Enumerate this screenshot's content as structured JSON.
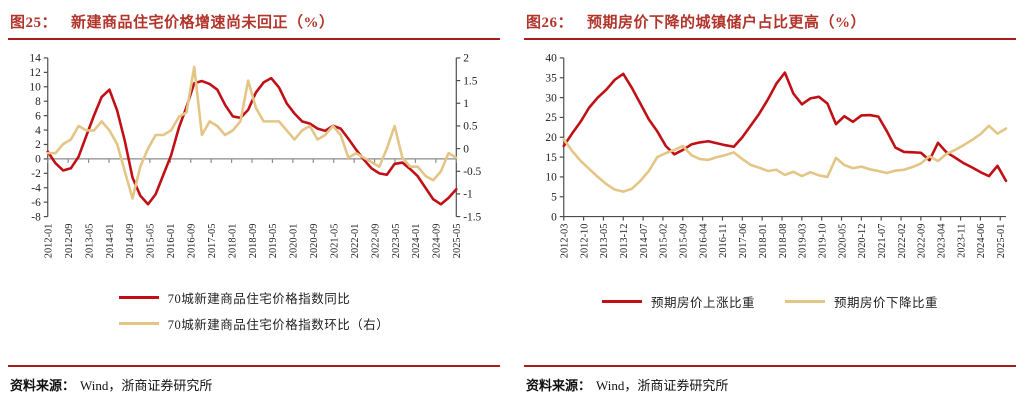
{
  "figures": [
    {
      "fig_label": "图25：",
      "title": "新建商品住宅价格增速尚未回正（%）",
      "source_label": "资料来源：",
      "source_text": "Wind，浙商证券研究所"
    },
    {
      "fig_label": "图26：",
      "title": "预期房价下降的城镇储户占比更高（%）",
      "source_label": "资料来源：",
      "source_text": "Wind，浙商证券研究所"
    }
  ],
  "colors": {
    "series_red": "#C01016",
    "series_tan": "#E3C586",
    "title_red": "#B2352B",
    "rule_red": "#A61E1A",
    "axis_line": "#4D4D4D",
    "zero_line_gray": "#8C8C8C",
    "tick_text": "#1F1F1F"
  },
  "chart_data": [
    {
      "type": "line",
      "title": "新建商品住宅价格增速尚未回正（%）",
      "xlabel": "",
      "ylabel": "",
      "grid": false,
      "legend_position": "bottom",
      "left_axis": {
        "min": -8,
        "max": 14,
        "step": 2
      },
      "right_axis": {
        "min": -1.5,
        "max": 2,
        "step": 0.5
      },
      "axis_color": "#4D4D4D",
      "baseline_color": "#8C8C8C",
      "tick_text_color": "#1F1F1F",
      "x_labels": [
        "2012-01",
        "2012-09",
        "2013-05",
        "2014-01",
        "2014-09",
        "2015-05",
        "2016-01",
        "2016-09",
        "2017-05",
        "2018-01",
        "2018-09",
        "2019-05",
        "2020-01",
        "2020-09",
        "2021-05",
        "2022-01",
        "2022-09",
        "2023-05",
        "2024-01",
        "2024-09",
        "2025-05"
      ],
      "categories": [
        "2012-01",
        "2012-04",
        "2012-07",
        "2012-10",
        "2013-01",
        "2013-04",
        "2013-07",
        "2013-10",
        "2014-01",
        "2014-04",
        "2014-07",
        "2014-10",
        "2015-01",
        "2015-04",
        "2015-07",
        "2015-10",
        "2016-01",
        "2016-04",
        "2016-07",
        "2016-10",
        "2017-01",
        "2017-04",
        "2017-07",
        "2017-10",
        "2018-01",
        "2018-04",
        "2018-07",
        "2018-10",
        "2019-01",
        "2019-04",
        "2019-07",
        "2019-10",
        "2020-01",
        "2020-04",
        "2020-07",
        "2020-10",
        "2021-01",
        "2021-04",
        "2021-07",
        "2021-10",
        "2022-01",
        "2022-04",
        "2022-07",
        "2022-10",
        "2023-01",
        "2023-04",
        "2023-07",
        "2023-10",
        "2024-01",
        "2024-04",
        "2024-07",
        "2024-10",
        "2025-01",
        "2025-04"
      ],
      "series": [
        {
          "name": "70城新建商品住宅价格指数同比",
          "axis": "left",
          "color": "#C01016",
          "values": [
            1.0,
            -0.6,
            -1.6,
            -1.3,
            0.3,
            3.2,
            6.0,
            8.6,
            9.6,
            6.7,
            2.5,
            -2.6,
            -5.1,
            -6.3,
            -4.9,
            -2.2,
            0.5,
            4.3,
            7.2,
            10.5,
            10.8,
            10.4,
            9.6,
            7.5,
            5.9,
            5.7,
            6.8,
            9.2,
            10.6,
            11.2,
            9.9,
            7.7,
            6.3,
            5.2,
            4.9,
            4.2,
            3.9,
            4.6,
            4.2,
            2.8,
            1.3,
            -0.1,
            -1.3,
            -2.0,
            -2.2,
            -0.7,
            -0.5,
            -1.4,
            -2.4,
            -4.0,
            -5.6,
            -6.3,
            -5.4,
            -4.2
          ]
        },
        {
          "name": "70城新建商品住宅价格指数环比（右）",
          "axis": "right",
          "color": "#E3C586",
          "values": [
            -0.1,
            -0.1,
            0.1,
            0.2,
            0.5,
            0.4,
            0.4,
            0.6,
            0.4,
            0.1,
            -0.5,
            -1.1,
            -0.4,
            0.0,
            0.3,
            0.3,
            0.4,
            0.7,
            0.8,
            1.8,
            0.3,
            0.6,
            0.5,
            0.3,
            0.4,
            0.6,
            1.5,
            0.9,
            0.6,
            0.6,
            0.6,
            0.4,
            0.2,
            0.4,
            0.5,
            0.2,
            0.3,
            0.5,
            0.3,
            -0.2,
            -0.1,
            -0.2,
            -0.3,
            -0.4,
            0.0,
            0.5,
            -0.2,
            -0.4,
            -0.4,
            -0.6,
            -0.7,
            -0.5,
            -0.1,
            -0.2
          ]
        }
      ]
    },
    {
      "type": "line",
      "title": "预期房价下降的城镇储户占比更高（%）",
      "xlabel": "",
      "ylabel": "",
      "grid": false,
      "legend_position": "bottom",
      "left_axis": {
        "min": 0,
        "max": 40,
        "step": 5
      },
      "axis_color": "#4D4D4D",
      "baseline_color": "#4D4D4D",
      "tick_text_color": "#1F1F1F",
      "x_label_end_fraction": 0.987,
      "x_labels": [
        "2012-03",
        "2012-10",
        "2013-05",
        "2013-12",
        "2014-07",
        "2015-02",
        "2015-09",
        "2016-04",
        "2016-11",
        "2017-06",
        "2018-01",
        "2018-08",
        "2019-03",
        "2019-10",
        "2020-05",
        "2020-12",
        "2021-07",
        "2022-02",
        "2022-09",
        "2023-04",
        "2023-11",
        "2024-06",
        "2025-01"
      ],
      "categories": [
        "2012-03",
        "2012-06",
        "2012-09",
        "2012-12",
        "2013-03",
        "2013-06",
        "2013-09",
        "2013-12",
        "2014-03",
        "2014-06",
        "2014-09",
        "2014-12",
        "2015-03",
        "2015-06",
        "2015-09",
        "2015-12",
        "2016-03",
        "2016-06",
        "2016-09",
        "2016-12",
        "2017-03",
        "2017-06",
        "2017-09",
        "2017-12",
        "2018-03",
        "2018-06",
        "2018-09",
        "2018-12",
        "2019-03",
        "2019-06",
        "2019-09",
        "2019-12",
        "2020-03",
        "2020-06",
        "2020-09",
        "2020-12",
        "2021-03",
        "2021-06",
        "2021-09",
        "2021-12",
        "2022-03",
        "2022-06",
        "2022-09",
        "2022-12",
        "2023-03",
        "2023-06",
        "2023-09",
        "2023-12",
        "2024-03",
        "2024-06",
        "2024-09",
        "2024-12",
        "2025-03"
      ],
      "series": [
        {
          "name": "预期房价上涨比重",
          "axis": "left",
          "color": "#C01016",
          "values": [
            17.8,
            21.0,
            24.0,
            27.5,
            30.0,
            32.0,
            34.5,
            36.0,
            32.5,
            28.5,
            24.5,
            21.5,
            17.8,
            15.7,
            16.8,
            18.2,
            18.7,
            19.0,
            18.5,
            18.0,
            17.6,
            20.0,
            23.0,
            26.0,
            29.5,
            33.5,
            36.3,
            31.0,
            28.3,
            29.8,
            30.2,
            28.5,
            23.3,
            25.3,
            23.9,
            25.5,
            25.6,
            25.2,
            21.5,
            17.4,
            16.3,
            16.2,
            16.1,
            14.2,
            18.6,
            16.2,
            14.9,
            13.5,
            12.4,
            11.2,
            10.2,
            12.8,
            9.0
          ]
        },
        {
          "name": "预期房价下降比重",
          "axis": "left",
          "color": "#E3C586",
          "values": [
            19.5,
            16.5,
            14.0,
            12.0,
            10.0,
            8.2,
            6.8,
            6.3,
            7.0,
            9.0,
            11.5,
            15.0,
            16.0,
            16.8,
            17.8,
            15.5,
            14.5,
            14.3,
            15.0,
            15.5,
            16.2,
            14.5,
            13.0,
            12.3,
            11.5,
            11.8,
            10.5,
            11.3,
            10.2,
            11.2,
            10.4,
            10.0,
            14.8,
            13.0,
            12.2,
            12.6,
            11.9,
            11.5,
            11.0,
            11.6,
            11.8,
            12.5,
            13.4,
            15.2,
            14.0,
            15.8,
            16.8,
            18.0,
            19.3,
            20.8,
            22.9,
            20.9,
            22.2
          ]
        }
      ]
    }
  ]
}
